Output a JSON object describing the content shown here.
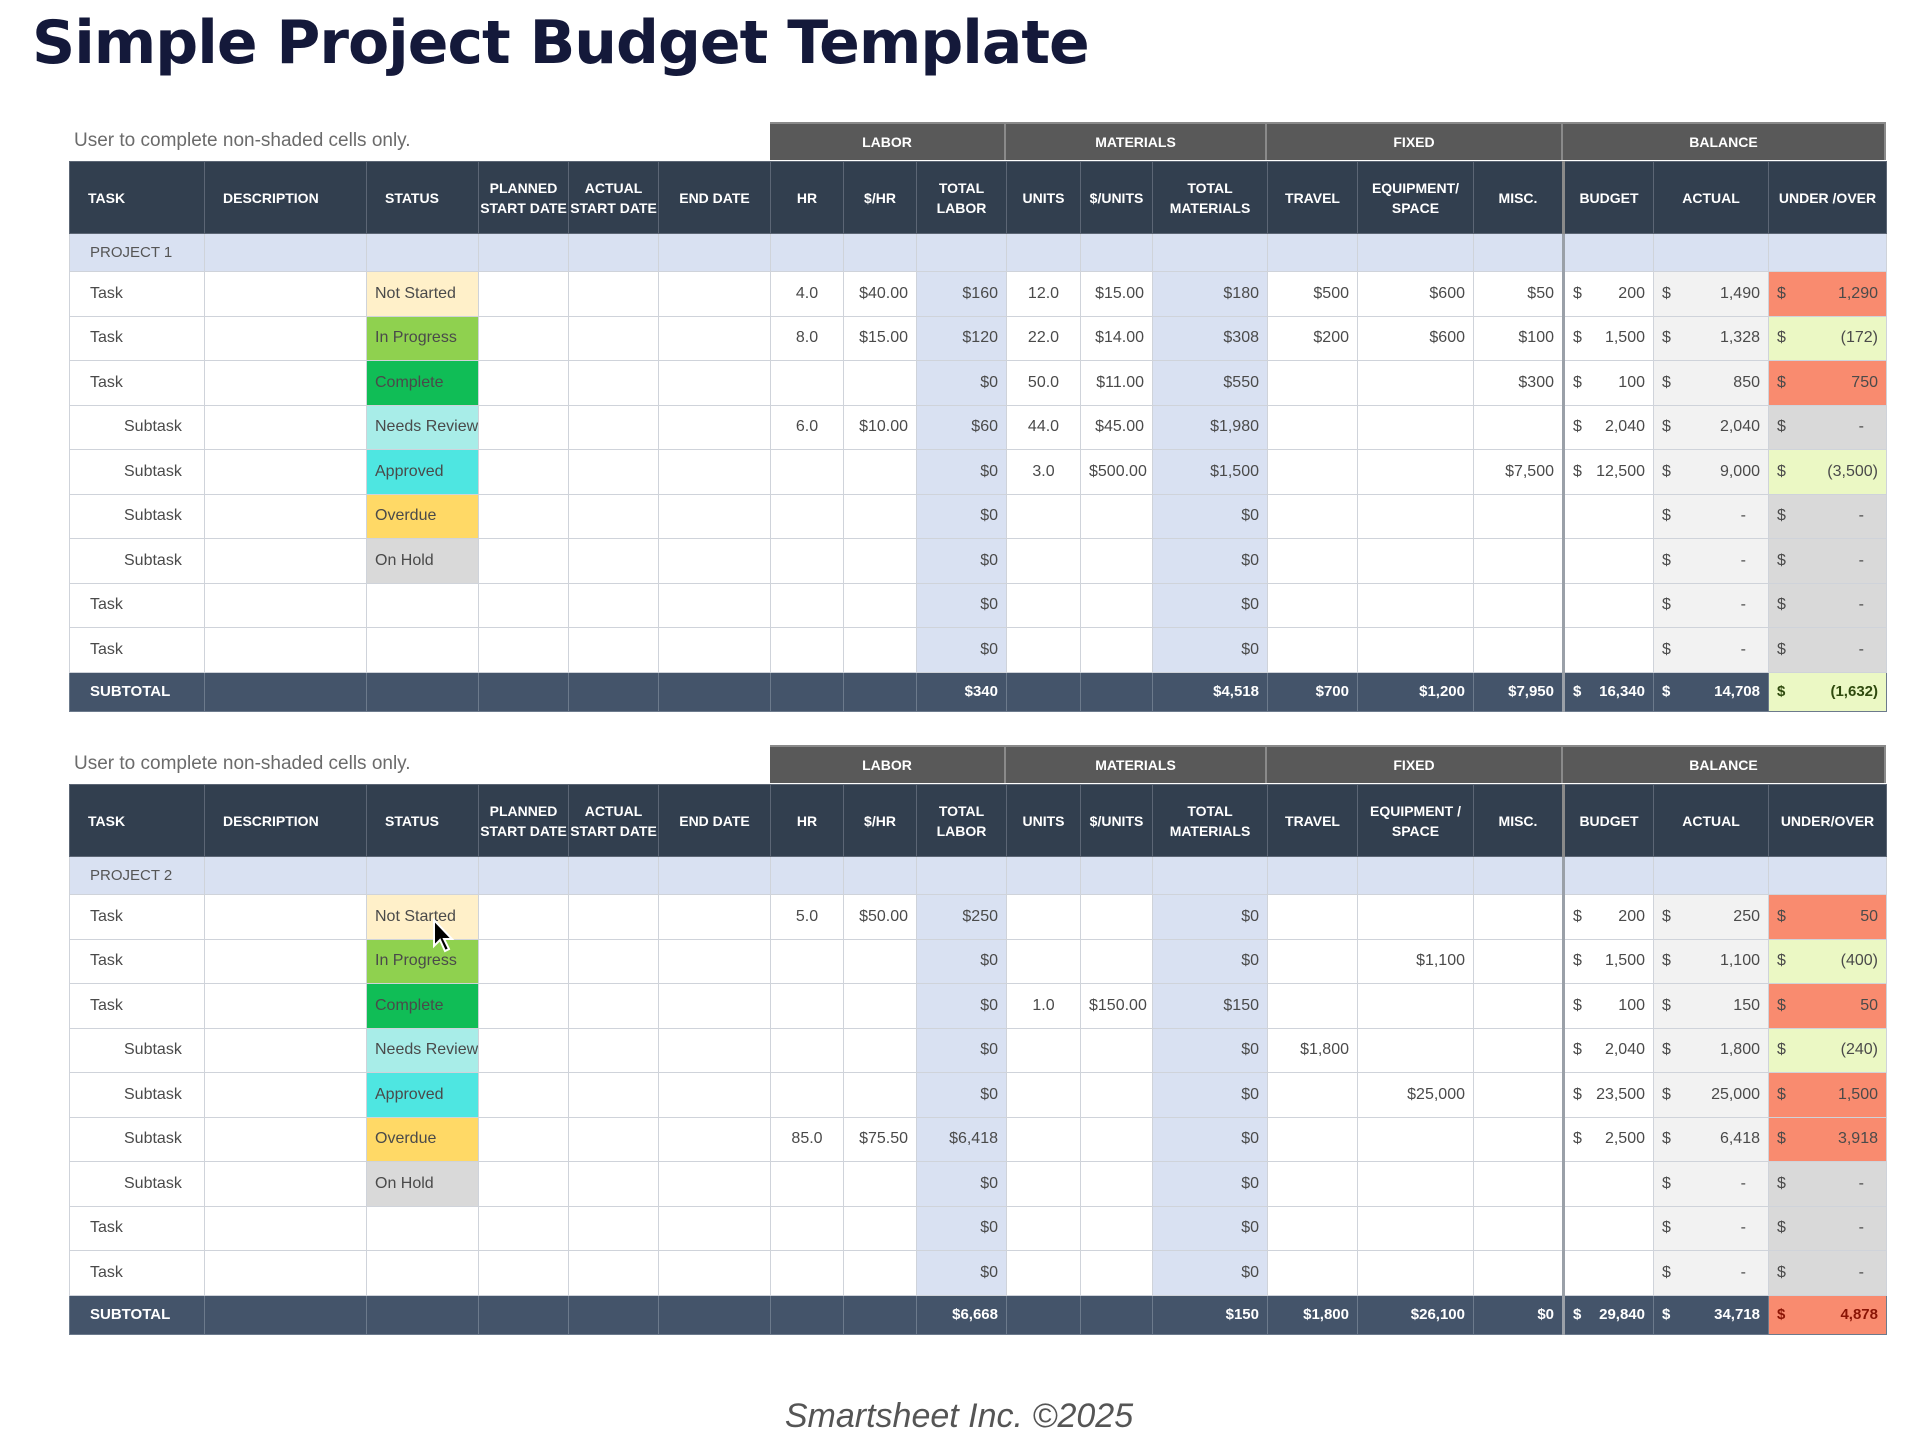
{
  "title": "Simple Project Budget Template",
  "note": "User to complete non-shaded cells only.",
  "groups": [
    "LABOR",
    "MATERIALS",
    "FIXED",
    "BALANCE"
  ],
  "columns_project1": [
    "TASK",
    "DESCRIPTION",
    "STATUS",
    "PLANNED START DATE",
    "ACTUAL START DATE",
    "END DATE",
    "HR",
    "$/HR",
    "TOTAL LABOR",
    "UNITS",
    "$/UNITS",
    "TOTAL MATERIALS",
    "TRAVEL",
    "EQUIPMENT/ SPACE",
    "MISC.",
    "BUDGET",
    "ACTUAL",
    "UNDER /OVER"
  ],
  "columns_project2": [
    "TASK",
    "DESCRIPTION",
    "STATUS",
    "PLANNED START DATE",
    "ACTUAL START DATE",
    "END DATE",
    "HR",
    "$/HR",
    "TOTAL LABOR",
    "UNITS",
    "$/UNITS",
    "TOTAL MATERIALS",
    "TRAVEL",
    "EQUIPMENT / SPACE",
    "MISC.",
    "BUDGET",
    "ACTUAL",
    "UNDER/OVER"
  ],
  "colors": {
    "header": "#323f4f",
    "group_header": "#595959",
    "subtotal": "#44546a",
    "shaded": "#d9e1f2",
    "over": "#f98b6f",
    "under": "#ebf8c4",
    "zero": "#d9d9d9"
  },
  "projects": [
    {
      "name": "PROJECT 1",
      "rows": [
        {
          "task": "Task",
          "level": "task",
          "status": "Not Started",
          "status_key": "not-started",
          "hr": "4.0",
          "rate": "$40.00",
          "total_labor": "$160",
          "units": "12.0",
          "unit_rate": "$15.00",
          "total_materials": "$180",
          "travel": "$500",
          "equipment": "$600",
          "misc": "$50",
          "budget": "200",
          "actual": "1,490",
          "variance": "1,290",
          "variance_state": "over"
        },
        {
          "task": "Task",
          "level": "task",
          "status": "In Progress",
          "status_key": "in-progress",
          "hr": "8.0",
          "rate": "$15.00",
          "total_labor": "$120",
          "units": "22.0",
          "unit_rate": "$14.00",
          "total_materials": "$308",
          "travel": "$200",
          "equipment": "$600",
          "misc": "$100",
          "budget": "1,500",
          "actual": "1,328",
          "variance": "(172)",
          "variance_state": "under"
        },
        {
          "task": "Task",
          "level": "task",
          "status": "Complete",
          "status_key": "complete",
          "hr": "",
          "rate": "",
          "total_labor": "$0",
          "units": "50.0",
          "unit_rate": "$11.00",
          "total_materials": "$550",
          "travel": "",
          "equipment": "",
          "misc": "$300",
          "budget": "100",
          "actual": "850",
          "variance": "750",
          "variance_state": "over"
        },
        {
          "task": "Subtask",
          "level": "sub",
          "status": "Needs Review",
          "status_key": "needs-review",
          "hr": "6.0",
          "rate": "$10.00",
          "total_labor": "$60",
          "units": "44.0",
          "unit_rate": "$45.00",
          "total_materials": "$1,980",
          "travel": "",
          "equipment": "",
          "misc": "",
          "budget": "2,040",
          "actual": "2,040",
          "variance": "-",
          "variance_state": "zero"
        },
        {
          "task": "Subtask",
          "level": "sub",
          "status": "Approved",
          "status_key": "approved",
          "hr": "",
          "rate": "",
          "total_labor": "$0",
          "units": "3.0",
          "unit_rate": "$500.00",
          "total_materials": "$1,500",
          "travel": "",
          "equipment": "",
          "misc": "$7,500",
          "budget": "12,500",
          "actual": "9,000",
          "variance": "(3,500)",
          "variance_state": "under"
        },
        {
          "task": "Subtask",
          "level": "sub",
          "status": "Overdue",
          "status_key": "overdue",
          "hr": "",
          "rate": "",
          "total_labor": "$0",
          "units": "",
          "unit_rate": "",
          "total_materials": "$0",
          "travel": "",
          "equipment": "",
          "misc": "",
          "budget": "",
          "actual": "-",
          "variance": "-",
          "variance_state": "zero"
        },
        {
          "task": "Subtask",
          "level": "sub",
          "status": "On Hold",
          "status_key": "on-hold",
          "hr": "",
          "rate": "",
          "total_labor": "$0",
          "units": "",
          "unit_rate": "",
          "total_materials": "$0",
          "travel": "",
          "equipment": "",
          "misc": "",
          "budget": "",
          "actual": "-",
          "variance": "-",
          "variance_state": "zero"
        },
        {
          "task": "Task",
          "level": "task",
          "status": "",
          "status_key": "",
          "hr": "",
          "rate": "",
          "total_labor": "$0",
          "units": "",
          "unit_rate": "",
          "total_materials": "$0",
          "travel": "",
          "equipment": "",
          "misc": "",
          "budget": "",
          "actual": "-",
          "variance": "-",
          "variance_state": "zero"
        },
        {
          "task": "Task",
          "level": "task",
          "status": "",
          "status_key": "",
          "hr": "",
          "rate": "",
          "total_labor": "$0",
          "units": "",
          "unit_rate": "",
          "total_materials": "$0",
          "travel": "",
          "equipment": "",
          "misc": "",
          "budget": "",
          "actual": "-",
          "variance": "-",
          "variance_state": "zero"
        }
      ],
      "subtotal": {
        "label": "SUBTOTAL",
        "total_labor": "$340",
        "total_materials": "$4,518",
        "travel": "$700",
        "equipment": "$1,200",
        "misc": "$7,950",
        "budget": "16,340",
        "actual": "14,708",
        "variance": "(1,632)",
        "variance_state": "under"
      }
    },
    {
      "name": "PROJECT 2",
      "rows": [
        {
          "task": "Task",
          "level": "task",
          "status": "Not Started",
          "status_key": "not-started",
          "hr": "5.0",
          "rate": "$50.00",
          "total_labor": "$250",
          "units": "",
          "unit_rate": "",
          "total_materials": "$0",
          "travel": "",
          "equipment": "",
          "misc": "",
          "budget": "200",
          "actual": "250",
          "variance": "50",
          "variance_state": "over"
        },
        {
          "task": "Task",
          "level": "task",
          "status": "In Progress",
          "status_key": "in-progress",
          "hr": "",
          "rate": "",
          "total_labor": "$0",
          "units": "",
          "unit_rate": "",
          "total_materials": "$0",
          "travel": "",
          "equipment": "$1,100",
          "misc": "",
          "budget": "1,500",
          "actual": "1,100",
          "variance": "(400)",
          "variance_state": "under"
        },
        {
          "task": "Task",
          "level": "task",
          "status": "Complete",
          "status_key": "complete",
          "hr": "",
          "rate": "",
          "total_labor": "$0",
          "units": "1.0",
          "unit_rate": "$150.00",
          "total_materials": "$150",
          "travel": "",
          "equipment": "",
          "misc": "",
          "budget": "100",
          "actual": "150",
          "variance": "50",
          "variance_state": "over"
        },
        {
          "task": "Subtask",
          "level": "sub",
          "status": "Needs Review",
          "status_key": "needs-review",
          "hr": "",
          "rate": "",
          "total_labor": "$0",
          "units": "",
          "unit_rate": "",
          "total_materials": "$0",
          "travel": "$1,800",
          "equipment": "",
          "misc": "",
          "budget": "2,040",
          "actual": "1,800",
          "variance": "(240)",
          "variance_state": "under"
        },
        {
          "task": "Subtask",
          "level": "sub",
          "status": "Approved",
          "status_key": "approved",
          "hr": "",
          "rate": "",
          "total_labor": "$0",
          "units": "",
          "unit_rate": "",
          "total_materials": "$0",
          "travel": "",
          "equipment": "$25,000",
          "misc": "",
          "budget": "23,500",
          "actual": "25,000",
          "variance": "1,500",
          "variance_state": "over"
        },
        {
          "task": "Subtask",
          "level": "sub",
          "status": "Overdue",
          "status_key": "overdue",
          "hr": "85.0",
          "rate": "$75.50",
          "total_labor": "$6,418",
          "units": "",
          "unit_rate": "",
          "total_materials": "$0",
          "travel": "",
          "equipment": "",
          "misc": "",
          "budget": "2,500",
          "actual": "6,418",
          "variance": "3,918",
          "variance_state": "over"
        },
        {
          "task": "Subtask",
          "level": "sub",
          "status": "On Hold",
          "status_key": "on-hold",
          "hr": "",
          "rate": "",
          "total_labor": "$0",
          "units": "",
          "unit_rate": "",
          "total_materials": "$0",
          "travel": "",
          "equipment": "",
          "misc": "",
          "budget": "",
          "actual": "-",
          "variance": "-",
          "variance_state": "zero"
        },
        {
          "task": "Task",
          "level": "task",
          "status": "",
          "status_key": "",
          "hr": "",
          "rate": "",
          "total_labor": "$0",
          "units": "",
          "unit_rate": "",
          "total_materials": "$0",
          "travel": "",
          "equipment": "",
          "misc": "",
          "budget": "",
          "actual": "-",
          "variance": "-",
          "variance_state": "zero"
        },
        {
          "task": "Task",
          "level": "task",
          "status": "",
          "status_key": "",
          "hr": "",
          "rate": "",
          "total_labor": "$0",
          "units": "",
          "unit_rate": "",
          "total_materials": "$0",
          "travel": "",
          "equipment": "",
          "misc": "",
          "budget": "",
          "actual": "-",
          "variance": "-",
          "variance_state": "zero"
        }
      ],
      "subtotal": {
        "label": "SUBTOTAL",
        "total_labor": "$6,668",
        "total_materials": "$150",
        "travel": "$1,800",
        "equipment": "$26,100",
        "misc": "$0",
        "budget": "29,840",
        "actual": "34,718",
        "variance": "4,878",
        "variance_state": "over"
      }
    }
  ],
  "currency_symbol": "$",
  "footer": "Smartsheet Inc. ©2025"
}
